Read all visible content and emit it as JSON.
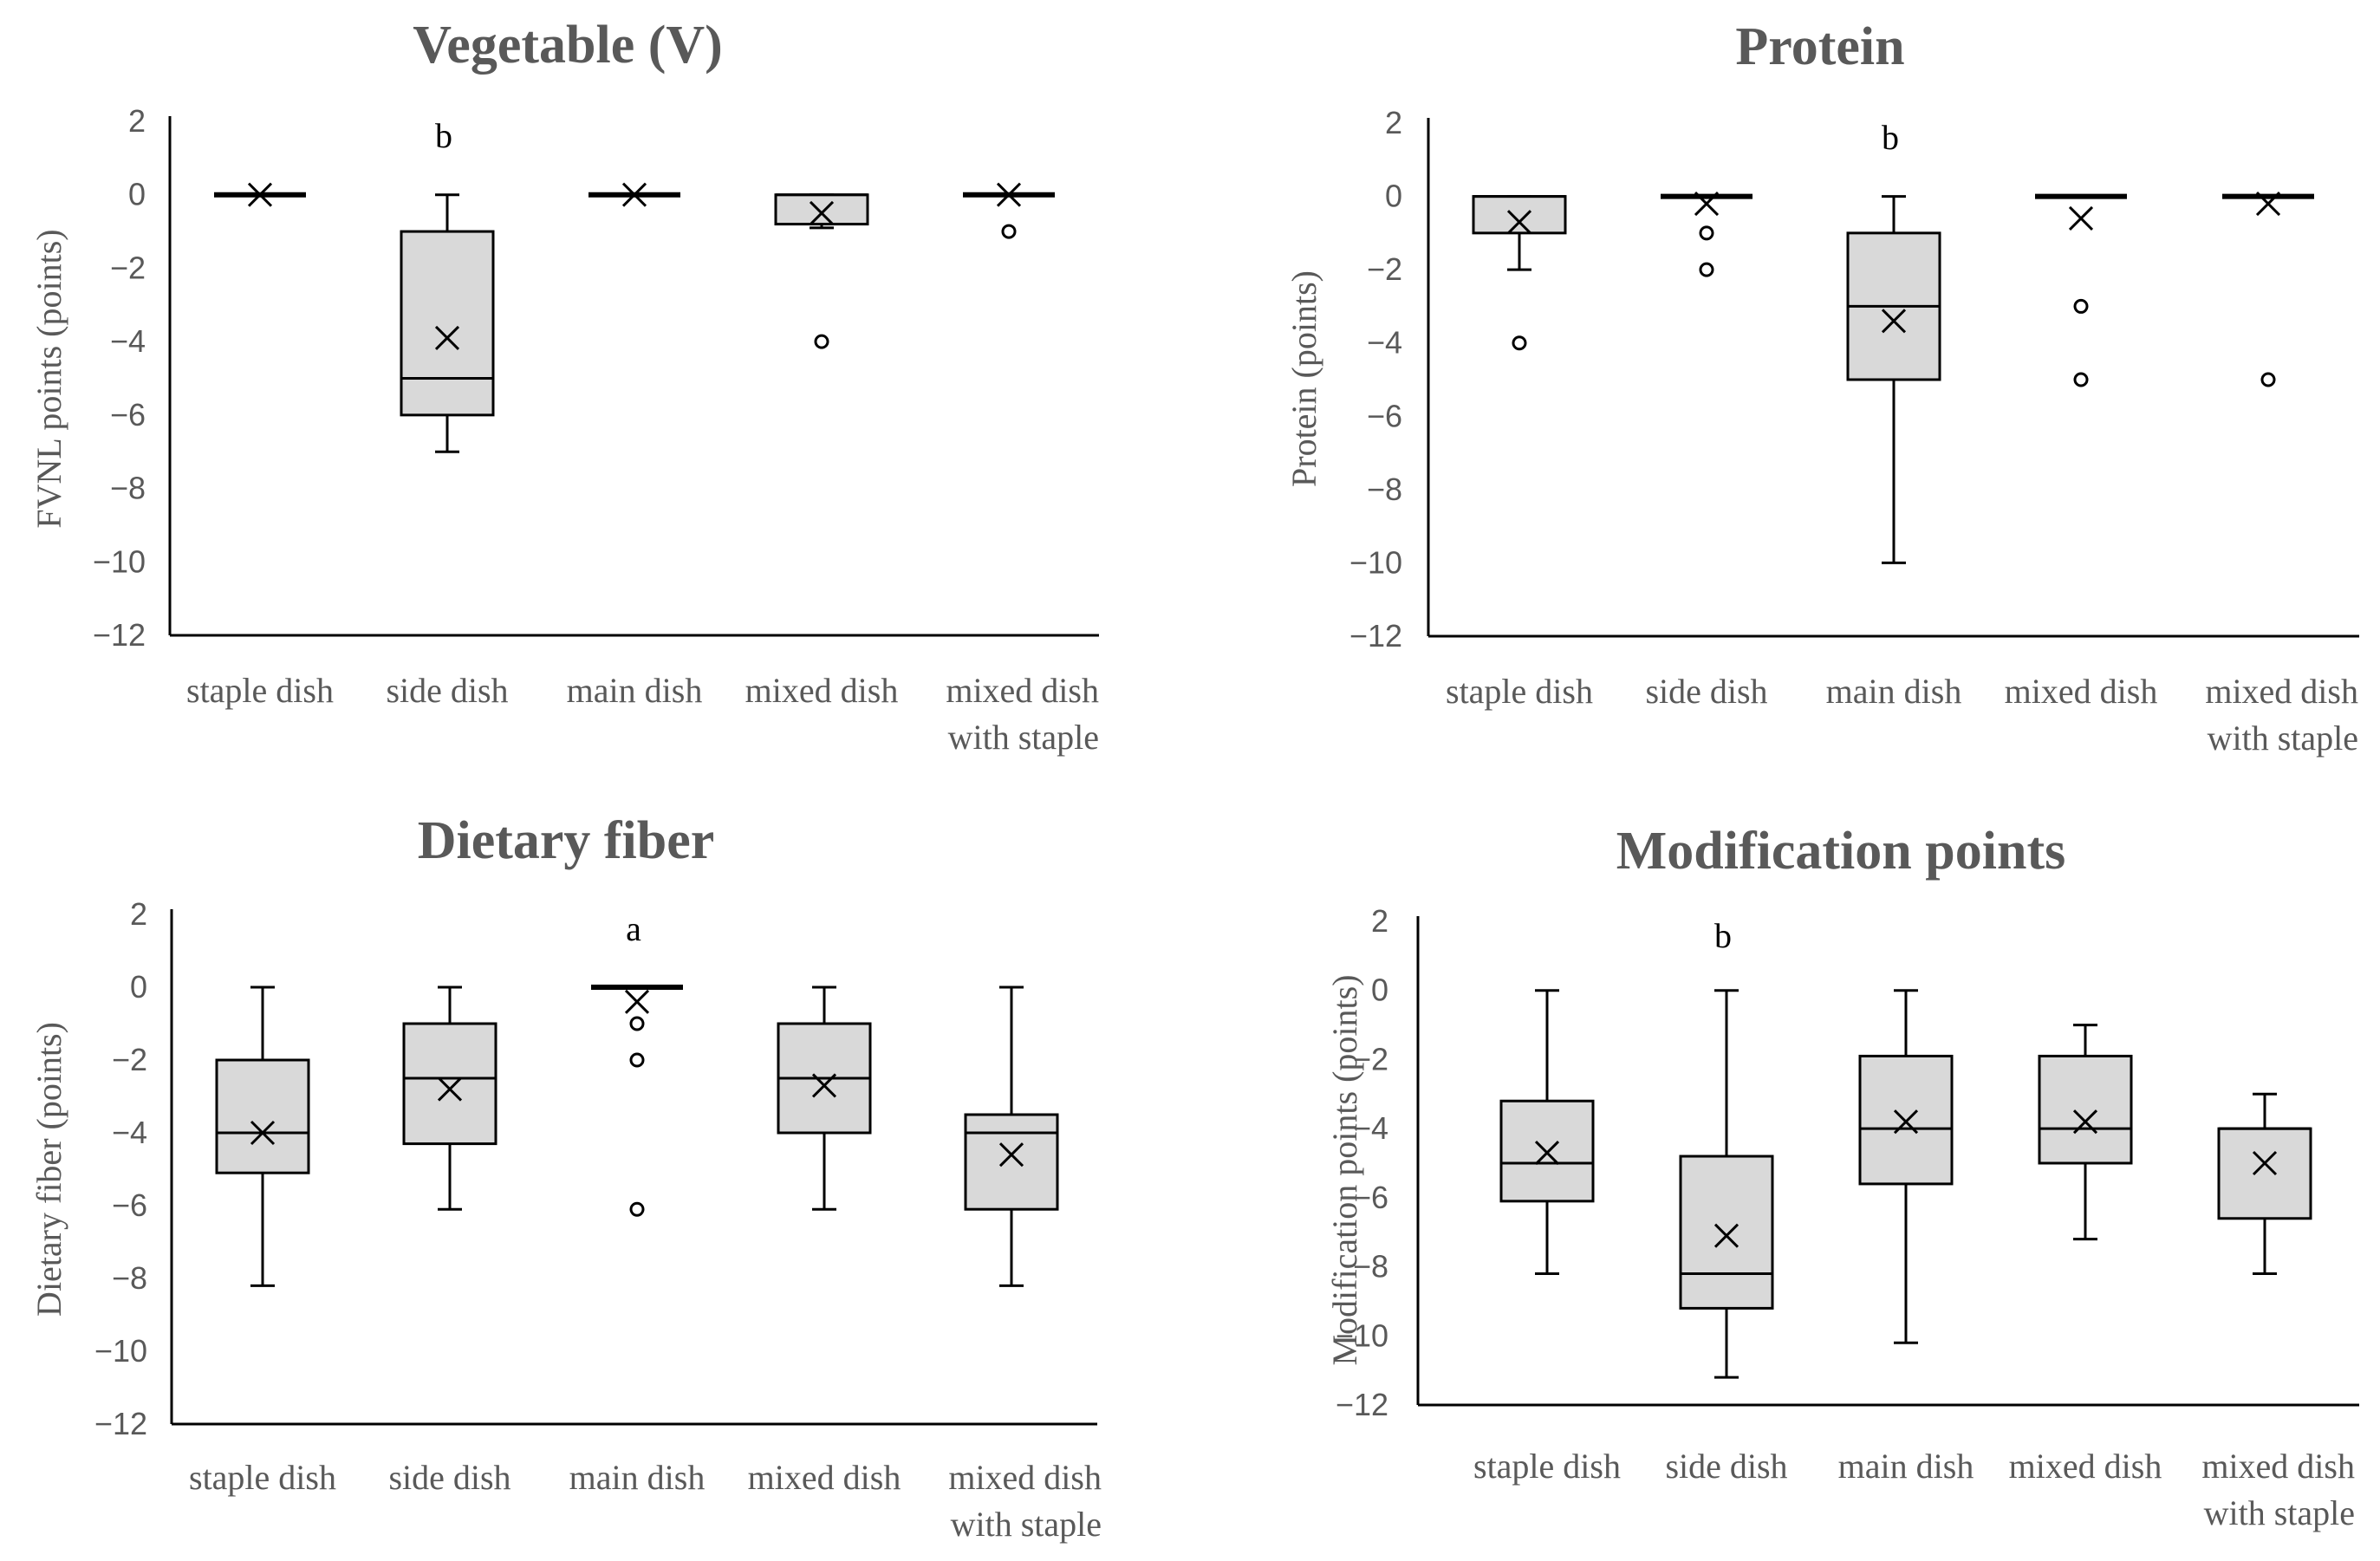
{
  "figure_title": "",
  "chart_data": [
    {
      "type": "box",
      "title": "Vegetable (V)",
      "ylabel": "FVNL points  (points)",
      "ylim": [
        -12,
        2
      ],
      "yticks": [
        "2",
        "0",
        "−2",
        "−4",
        "−6",
        "−8",
        "−10",
        "−12"
      ],
      "categories": [
        {
          "lines": [
            "staple dish"
          ],
          "min": 0,
          "q1": 0,
          "median": 0,
          "q3": 0,
          "max": 0,
          "mean": 0,
          "outliers": []
        },
        {
          "lines": [
            "side dish"
          ],
          "min": -7,
          "q1": -6,
          "median": -5,
          "q3": -1,
          "max": 0,
          "mean": -3.9,
          "outliers": [],
          "annotation": "b"
        },
        {
          "lines": [
            "main dish"
          ],
          "min": 0,
          "q1": 0,
          "median": 0,
          "q3": 0,
          "max": 0,
          "mean": 0,
          "outliers": []
        },
        {
          "lines": [
            "mixed dish"
          ],
          "min": -0.9,
          "q1": -0.8,
          "median": 0,
          "q3": 0,
          "max": 0,
          "mean": -0.5,
          "outliers": [
            -4
          ]
        },
        {
          "lines": [
            "mixed dish",
            "with staple"
          ],
          "min": 0,
          "q1": 0,
          "median": 0,
          "q3": 0,
          "max": 0,
          "mean": 0,
          "outliers": [
            -1
          ]
        }
      ]
    },
    {
      "type": "box",
      "title": "Protein",
      "ylabel": "Protein (points)",
      "ylim": [
        -12,
        2
      ],
      "yticks": [
        "2",
        "0",
        "−2",
        "−4",
        "−6",
        "−8",
        "−10",
        "−12"
      ],
      "categories": [
        {
          "lines": [
            "staple dish"
          ],
          "min": -2,
          "q1": -1,
          "median": 0,
          "q3": 0,
          "max": 0,
          "mean": -0.7,
          "outliers": [
            -4
          ]
        },
        {
          "lines": [
            "side dish"
          ],
          "min": 0,
          "q1": 0,
          "median": 0,
          "q3": 0,
          "max": 0,
          "mean": -0.2,
          "outliers": [
            -1,
            -2
          ]
        },
        {
          "lines": [
            "main dish"
          ],
          "min": -10,
          "q1": -5,
          "median": -3,
          "q3": -1,
          "max": 0,
          "mean": -3.4,
          "outliers": [],
          "annotation": "b"
        },
        {
          "lines": [
            "mixed dish"
          ],
          "min": 0,
          "q1": 0,
          "median": 0,
          "q3": 0,
          "max": 0,
          "mean": -0.6,
          "outliers": [
            -3,
            -5
          ]
        },
        {
          "lines": [
            "mixed dish",
            "with staple"
          ],
          "min": 0,
          "q1": 0,
          "median": 0,
          "q3": 0,
          "max": 0,
          "mean": -0.2,
          "outliers": [
            -5
          ]
        }
      ]
    },
    {
      "type": "box",
      "title": "Dietary fiber",
      "ylabel": "Dietary fiber (points)",
      "ylim": [
        -12,
        2
      ],
      "yticks": [
        "2",
        "0",
        "−2",
        "−4",
        "−6",
        "−8",
        "−10",
        "−12"
      ],
      "categories": [
        {
          "lines": [
            "staple dish"
          ],
          "min": -8.2,
          "q1": -5.1,
          "median": -4,
          "q3": -2,
          "max": 0,
          "mean": -4,
          "outliers": []
        },
        {
          "lines": [
            "side dish"
          ],
          "min": -6.1,
          "q1": -4.3,
          "median": -2.5,
          "q3": -1,
          "max": 0,
          "mean": -2.8,
          "outliers": []
        },
        {
          "lines": [
            "main dish"
          ],
          "min": 0,
          "q1": 0,
          "median": 0,
          "q3": 0,
          "max": 0,
          "mean": -0.4,
          "outliers": [
            -1,
            -2,
            -6.1
          ],
          "annotation": "a"
        },
        {
          "lines": [
            "mixed dish"
          ],
          "min": -6.1,
          "q1": -4,
          "median": -2.5,
          "q3": -1,
          "max": 0,
          "mean": -2.7,
          "outliers": []
        },
        {
          "lines": [
            "mixed dish",
            "with staple"
          ],
          "min": -8.2,
          "q1": -6.1,
          "median": -4,
          "q3": -3.5,
          "max": 0,
          "mean": -4.6,
          "outliers": []
        }
      ]
    },
    {
      "type": "box",
      "title": "Modification points",
      "ylabel": "Modification  points (points)",
      "ylim": [
        -12,
        2
      ],
      "yticks": [
        "2",
        "0",
        "−2",
        "−4",
        "−6",
        "−8",
        "−10",
        "−12"
      ],
      "categories": [
        {
          "lines": [
            "staple dish"
          ],
          "min": -8.2,
          "q1": -6.1,
          "median": -5,
          "q3": -3.2,
          "max": 0,
          "mean": -4.7,
          "outliers": []
        },
        {
          "lines": [
            "side dish"
          ],
          "min": -11.2,
          "q1": -9.2,
          "median": -8.2,
          "q3": -4.8,
          "max": 0,
          "mean": -7.1,
          "outliers": [],
          "annotation": "b"
        },
        {
          "lines": [
            "main dish"
          ],
          "min": -10.2,
          "q1": -5.6,
          "median": -4,
          "q3": -1.9,
          "max": 0,
          "mean": -3.8,
          "outliers": []
        },
        {
          "lines": [
            "mixed dish"
          ],
          "min": -7.2,
          "q1": -5,
          "median": -4,
          "q3": -1.9,
          "max": -1,
          "mean": -3.8,
          "outliers": []
        },
        {
          "lines": [
            "mixed dish",
            "with staple"
          ],
          "min": -8.2,
          "q1": -6.6,
          "median": -4,
          "q3": -4,
          "max": -3,
          "mean": -5,
          "outliers": []
        }
      ]
    }
  ]
}
